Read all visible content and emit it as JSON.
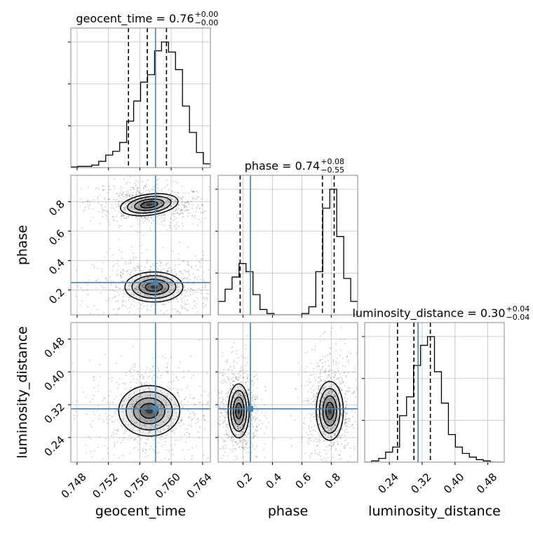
{
  "chart_data": {
    "type": "corner",
    "parameters": [
      "geocent_time",
      "phase",
      "luminosity_distance"
    ],
    "truths": {
      "geocent_time": 0.758,
      "phase": 0.25,
      "luminosity_distance": 0.31
    },
    "colors": {
      "truth": "#4682b4",
      "hist": "#000000",
      "grid": "#c0c0c0",
      "density": "#000000"
    },
    "axis_ranges": {
      "geocent_time": [
        0.7472,
        0.765
      ],
      "phase": [
        0.03,
        0.98
      ],
      "luminosity_distance": [
        0.18,
        0.52
      ]
    },
    "ticks": {
      "geocent_time": [
        "0.748",
        "0.752",
        "0.756",
        "0.760",
        "0.764"
      ],
      "phase": [
        "0.2",
        "0.4",
        "0.6",
        "0.8"
      ],
      "luminosity_distance": [
        "0.24",
        "0.32",
        "0.40",
        "0.48"
      ]
    },
    "titles": {
      "geocent_time": {
        "name": "geocent_time",
        "value": "0.76",
        "plus": "+0.00",
        "minus": "−0.00"
      },
      "phase": {
        "name": "phase",
        "value": "0.74",
        "plus": "+0.08",
        "minus": "−0.55"
      },
      "luminosity_distance": {
        "name": "luminosity_distance",
        "value": "0.30",
        "plus": "+0.04",
        "minus": "−0.04"
      }
    },
    "axis_labels": {
      "geocent_time": "geocent_time",
      "phase": "phase",
      "luminosity_distance": "luminosity_distance"
    },
    "quantiles": {
      "geocent_time": [
        0.75455,
        0.75695,
        0.7594
      ],
      "phase": [
        0.18,
        0.74,
        0.82
      ],
      "luminosity_distance": [
        0.26,
        0.3,
        0.34
      ]
    },
    "histograms": {
      "geocent_time": {
        "edges_start": 0.7472,
        "bin_width": 0.00089,
        "counts": [
          0.005,
          0.01,
          0.01,
          0.02,
          0.05,
          0.1,
          0.13,
          0.2,
          0.37,
          0.53,
          0.68,
          0.74,
          0.93,
          1.0,
          0.92,
          0.78,
          0.49,
          0.28,
          0.12,
          0.03
        ]
      },
      "phase": {
        "edges_start": 0.03,
        "bin_width": 0.0475,
        "counts": [
          0.1,
          0.19,
          0.28,
          0.38,
          0.32,
          0.15,
          0.04,
          0.01,
          0.0,
          0.0,
          0.0,
          0.0,
          0.01,
          0.06,
          0.32,
          0.79,
          0.93,
          0.58,
          0.27,
          0.1
        ]
      },
      "luminosity_distance": {
        "edges_start": 0.18,
        "bin_width": 0.017,
        "counts": [
          0.0,
          0.01,
          0.03,
          0.08,
          0.12,
          0.37,
          0.52,
          0.77,
          0.93,
          1.0,
          0.72,
          0.47,
          0.22,
          0.12,
          0.07,
          0.04,
          0.02,
          0.01,
          0.0,
          0.0
        ]
      }
    },
    "density_modes": [
      {
        "x": "geocent_time",
        "y": "phase",
        "blobs": [
          {
            "cx": 0.7572,
            "cy": 0.78,
            "sx": 0.0018,
            "sy": 0.035,
            "tilt": -0.3
          },
          {
            "cx": 0.7578,
            "cy": 0.22,
            "sx": 0.0018,
            "sy": 0.05,
            "tilt": 0.0
          }
        ]
      },
      {
        "x": "geocent_time",
        "y": "luminosity_distance",
        "blobs": [
          {
            "cx": 0.7572,
            "cy": 0.305,
            "sx": 0.0019,
            "sy": 0.03,
            "tilt": 0.0
          }
        ]
      },
      {
        "x": "phase",
        "y": "luminosity_distance",
        "blobs": [
          {
            "cx": 0.17,
            "cy": 0.305,
            "sx": 0.035,
            "sy": 0.032,
            "tilt": 0.0
          },
          {
            "cx": 0.79,
            "cy": 0.305,
            "sx": 0.045,
            "sy": 0.035,
            "tilt": 0.0
          }
        ]
      }
    ],
    "grid": true
  }
}
